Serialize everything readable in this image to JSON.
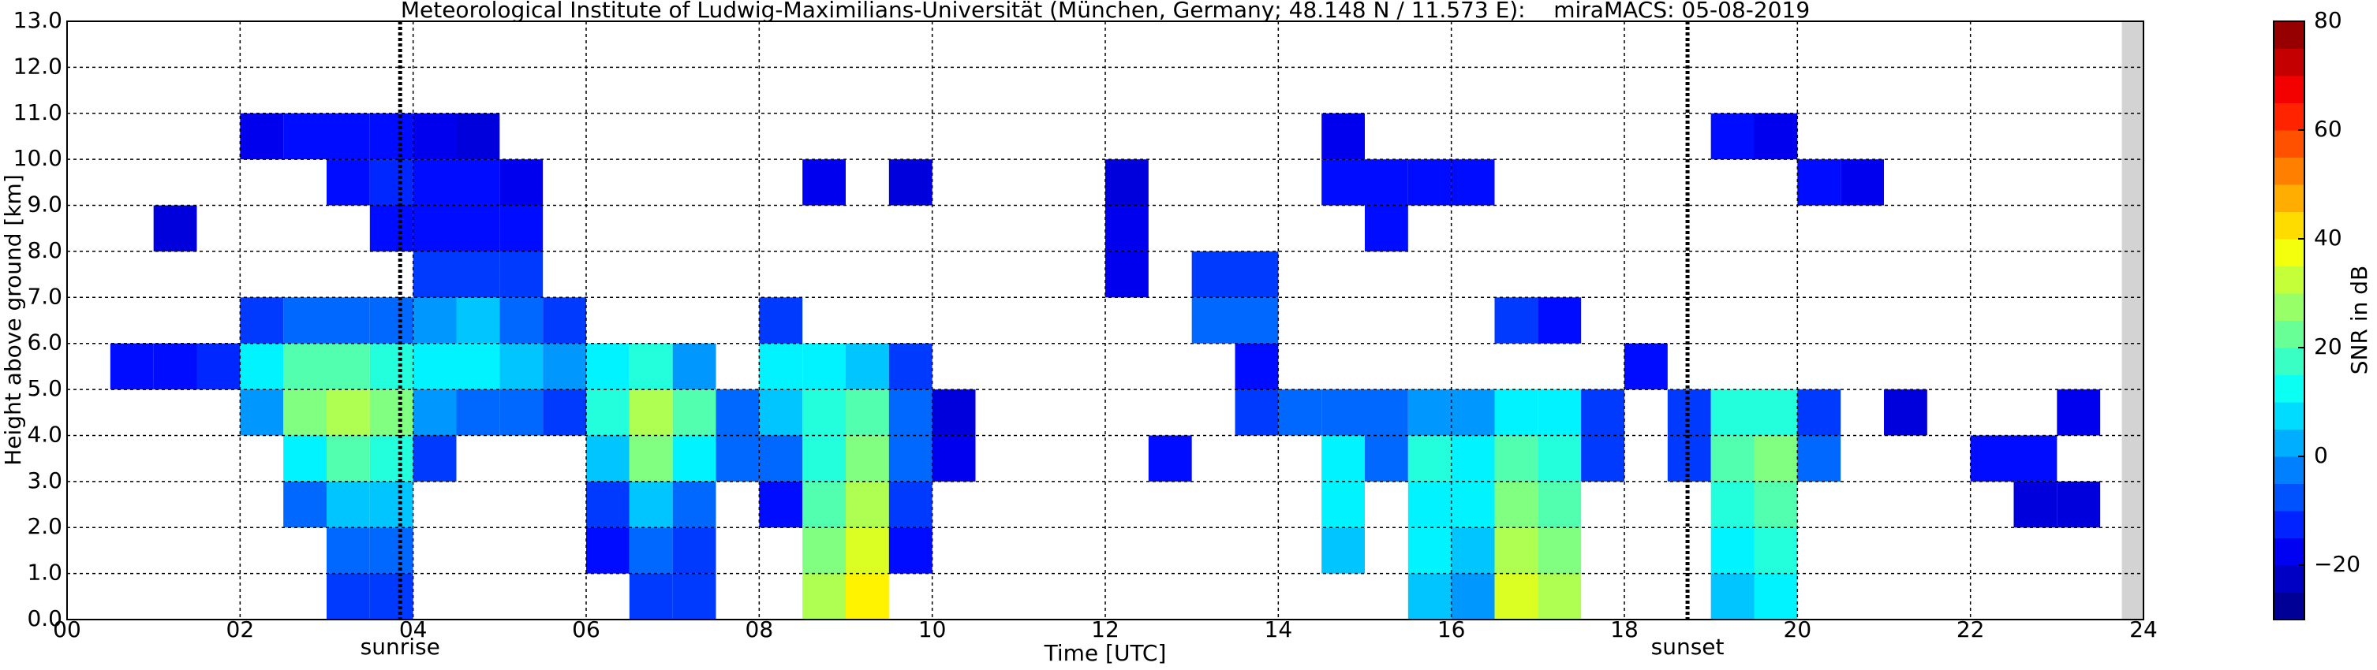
{
  "chart_data": {
    "type": "heatmap",
    "title": "Meteorological Institute of Ludwig-Maximilians-Universität (München, Germany; 48.148 N / 11.573 E):    miraMACS: 05-08-2019",
    "x_label": "Time [UTC]",
    "y_label": "Height above ground [km]",
    "colorbar_label": "SNR in dB",
    "colormap": "jet",
    "clim": [
      -30,
      80
    ],
    "grid": true,
    "xlim": [
      0,
      24
    ],
    "ylim": [
      0,
      13
    ],
    "xticks": [
      {
        "value": 0,
        "label": "00"
      },
      {
        "value": 2,
        "label": "02"
      },
      {
        "value": 4,
        "label": "04"
      },
      {
        "value": 6,
        "label": "06"
      },
      {
        "value": 8,
        "label": "08"
      },
      10,
      12,
      14,
      16,
      18,
      20,
      22,
      24
    ],
    "yticks": [
      {
        "value": 0,
        "label": "0.0"
      },
      {
        "value": 1,
        "label": "1.0"
      },
      {
        "value": 2,
        "label": "2.0"
      },
      {
        "value": 3,
        "label": "3.0"
      },
      {
        "value": 4,
        "label": "4.0"
      },
      {
        "value": 5,
        "label": "5.0"
      },
      {
        "value": 6,
        "label": "6.0"
      },
      {
        "value": 7,
        "label": "7.0"
      },
      {
        "value": 8,
        "label": "8.0"
      },
      {
        "value": 9,
        "label": "9.0"
      },
      {
        "value": 10,
        "label": "10.0"
      },
      {
        "value": 11,
        "label": "11.0"
      },
      {
        "value": 12,
        "label": "12.0"
      },
      {
        "value": 13,
        "label": "13.0"
      }
    ],
    "cticks": [
      {
        "value": -20,
        "label": "−20"
      },
      0,
      20,
      40,
      60,
      80
    ],
    "annotations": [
      {
        "text": "sunrise",
        "x": 3.85
      },
      {
        "text": "sunset",
        "x": 18.73
      }
    ],
    "no_data": [
      [
        23.75,
        24
      ]
    ],
    "xbins": [
      0,
      0.5,
      1,
      1.5,
      2,
      2.5,
      3,
      3.5,
      4,
      4.5,
      5,
      5.5,
      6,
      6.5,
      7,
      7.5,
      8,
      8.5,
      9,
      9.5,
      10,
      10.5,
      11,
      11.5,
      12,
      12.5,
      13,
      13.5,
      14,
      14.5,
      15,
      15.5,
      16,
      16.5,
      17,
      17.5,
      18,
      18.5,
      19,
      19.5,
      20,
      20.5,
      21,
      21.5,
      22,
      22.5,
      23,
      23.5,
      24
    ],
    "ybins": [
      0,
      1,
      2,
      3,
      4,
      5,
      6,
      7,
      8,
      9,
      10,
      11,
      12,
      13
    ],
    "z": [
      [
        null,
        null,
        null,
        null,
        null,
        null,
        null,
        null,
        null,
        null,
        null,
        null,
        null
      ],
      [
        null,
        null,
        null,
        null,
        null,
        -15,
        null,
        null,
        null,
        null,
        null,
        null,
        null
      ],
      [
        null,
        null,
        null,
        null,
        null,
        -15,
        null,
        null,
        -20,
        null,
        null,
        null,
        null
      ],
      [
        null,
        null,
        null,
        null,
        null,
        -12,
        null,
        null,
        null,
        null,
        null,
        null,
        null
      ],
      [
        null,
        null,
        null,
        null,
        0,
        10,
        -10,
        null,
        null,
        null,
        -18,
        null,
        null
      ],
      [
        null,
        null,
        -5,
        10,
        25,
        20,
        -5,
        null,
        null,
        null,
        -15,
        null,
        null
      ],
      [
        -10,
        -5,
        5,
        20,
        30,
        20,
        -5,
        null,
        null,
        -15,
        -15,
        null,
        null
      ],
      [
        -10,
        -5,
        5,
        15,
        25,
        15,
        -5,
        null,
        -15,
        -12,
        -15,
        null,
        null
      ],
      [
        null,
        null,
        null,
        -10,
        0,
        10,
        0,
        -10,
        -15,
        -15,
        -18,
        null,
        null
      ],
      [
        null,
        null,
        null,
        null,
        -5,
        10,
        5,
        -10,
        -15,
        -15,
        -20,
        null,
        null
      ],
      [
        null,
        null,
        null,
        null,
        -5,
        5,
        -5,
        -10,
        -15,
        -18,
        null,
        null,
        null
      ],
      [
        null,
        null,
        null,
        null,
        -10,
        0,
        -10,
        null,
        null,
        null,
        null,
        null,
        null
      ],
      [
        null,
        -15,
        -10,
        5,
        15,
        10,
        null,
        null,
        null,
        null,
        null,
        null,
        null
      ],
      [
        -10,
        -5,
        5,
        25,
        30,
        15,
        null,
        null,
        null,
        null,
        null,
        null,
        null
      ],
      [
        -10,
        -10,
        -5,
        10,
        20,
        0,
        null,
        null,
        null,
        null,
        null,
        null,
        null
      ],
      [
        null,
        null,
        null,
        -5,
        -5,
        null,
        null,
        null,
        null,
        null,
        null,
        null,
        null
      ],
      [
        null,
        null,
        -15,
        -5,
        5,
        10,
        -10,
        null,
        null,
        null,
        null,
        null,
        null
      ],
      [
        30,
        25,
        20,
        15,
        15,
        10,
        null,
        null,
        null,
        -18,
        null,
        null,
        null
      ],
      [
        40,
        35,
        30,
        25,
        20,
        5,
        null,
        null,
        null,
        null,
        null,
        null,
        null
      ],
      [
        null,
        -15,
        -10,
        -5,
        -5,
        -10,
        null,
        null,
        null,
        -20,
        null,
        null,
        null
      ],
      [
        null,
        null,
        null,
        -18,
        -20,
        null,
        null,
        null,
        null,
        null,
        null,
        null,
        null
      ],
      [
        null,
        null,
        null,
        null,
        null,
        null,
        null,
        null,
        null,
        null,
        null,
        null,
        null
      ],
      [
        null,
        null,
        null,
        null,
        null,
        null,
        null,
        null,
        null,
        null,
        null,
        null,
        null
      ],
      [
        null,
        null,
        null,
        null,
        null,
        null,
        null,
        null,
        null,
        null,
        null,
        null,
        null
      ],
      [
        null,
        null,
        null,
        null,
        null,
        null,
        null,
        -18,
        -18,
        -20,
        null,
        null,
        null
      ],
      [
        null,
        null,
        null,
        -15,
        null,
        null,
        null,
        null,
        null,
        null,
        null,
        null,
        null
      ],
      [
        null,
        null,
        null,
        null,
        null,
        null,
        -5,
        -10,
        null,
        null,
        null,
        null,
        null
      ],
      [
        null,
        null,
        null,
        null,
        -10,
        -15,
        -5,
        -10,
        null,
        null,
        null,
        null,
        null
      ],
      [
        null,
        null,
        null,
        null,
        -5,
        null,
        null,
        null,
        null,
        null,
        null,
        null,
        null
      ],
      [
        null,
        5,
        10,
        10,
        -5,
        null,
        null,
        null,
        null,
        -15,
        -18,
        null,
        null
      ],
      [
        null,
        null,
        null,
        -5,
        -5,
        null,
        null,
        null,
        -15,
        -15,
        null,
        null,
        null
      ],
      [
        5,
        10,
        10,
        15,
        0,
        null,
        null,
        null,
        null,
        -15,
        null,
        null,
        null
      ],
      [
        0,
        5,
        10,
        10,
        0,
        null,
        null,
        null,
        null,
        -15,
        null,
        null,
        null
      ],
      [
        35,
        30,
        25,
        20,
        10,
        null,
        -10,
        null,
        null,
        null,
        null,
        null,
        null
      ],
      [
        30,
        25,
        20,
        15,
        10,
        null,
        -15,
        null,
        null,
        null,
        null,
        null,
        null
      ],
      [
        null,
        null,
        null,
        -10,
        -10,
        null,
        null,
        null,
        null,
        null,
        null,
        null,
        null
      ],
      [
        null,
        null,
        null,
        null,
        null,
        -15,
        null,
        null,
        null,
        null,
        null,
        null,
        null
      ],
      [
        null,
        null,
        null,
        -10,
        -10,
        null,
        null,
        null,
        null,
        null,
        null,
        null,
        null
      ],
      [
        5,
        10,
        15,
        20,
        15,
        null,
        null,
        null,
        null,
        null,
        -15,
        null,
        null
      ],
      [
        10,
        15,
        20,
        25,
        15,
        null,
        null,
        null,
        null,
        null,
        -18,
        null,
        null
      ],
      [
        null,
        null,
        null,
        -5,
        -10,
        null,
        null,
        null,
        null,
        -15,
        null,
        null,
        null
      ],
      [
        null,
        null,
        null,
        null,
        null,
        null,
        null,
        null,
        null,
        -18,
        null,
        null,
        null
      ],
      [
        null,
        null,
        null,
        null,
        -20,
        null,
        null,
        null,
        null,
        null,
        null,
        null,
        null
      ],
      [
        null,
        null,
        null,
        null,
        null,
        null,
        null,
        null,
        null,
        null,
        null,
        null,
        null
      ],
      [
        null,
        null,
        null,
        -15,
        null,
        null,
        null,
        null,
        null,
        null,
        null,
        null,
        null
      ],
      [
        null,
        null,
        -20,
        -15,
        null,
        null,
        null,
        null,
        null,
        null,
        null,
        null,
        null
      ],
      [
        null,
        null,
        -20,
        null,
        -18,
        null,
        null,
        null,
        null,
        null,
        null,
        null,
        null
      ],
      [
        null,
        null,
        null,
        null,
        null,
        null,
        null,
        null,
        null,
        null,
        null,
        null,
        null
      ]
    ]
  }
}
